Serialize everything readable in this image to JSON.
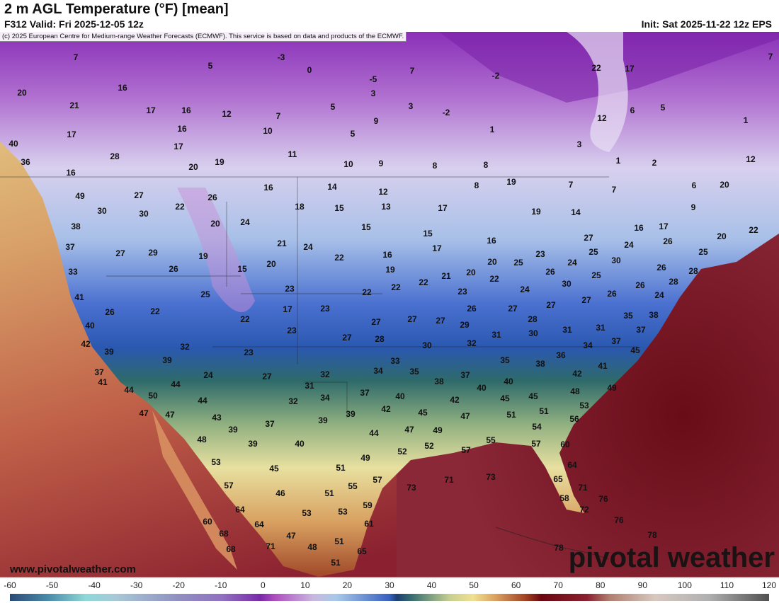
{
  "header": {
    "title": "2 m AGL Temperature (°F) [mean]",
    "valid": "F312 Valid: Fri 2025-12-05 12z",
    "init": "Init: Sat 2025-11-22 12z EPS",
    "copyright": "(c) 2025 European Centre for Medium-range Weather Forecasts (ECMWF). This service is based on data and products of the ECMWF."
  },
  "map": {
    "units": "°F",
    "temperature_labels": [
      "7",
      "5",
      "-3",
      "0",
      "7",
      "-2",
      "-5",
      "22",
      "17",
      "7",
      "20",
      "16",
      "21",
      "17",
      "16",
      "12",
      "7",
      "5",
      "3",
      "3",
      "-2",
      "9",
      "12",
      "6",
      "5",
      "1",
      "17",
      "16",
      "10",
      "5",
      "1",
      "40",
      "17",
      "11",
      "3",
      "28",
      "36",
      "20",
      "19",
      "10",
      "9",
      "8",
      "8",
      "1",
      "2",
      "12",
      "16",
      "19",
      "49",
      "27",
      "26",
      "16",
      "14",
      "12",
      "8",
      "7",
      "7",
      "6",
      "20",
      "30",
      "30",
      "22",
      "18",
      "15",
      "13",
      "17",
      "19",
      "14",
      "9",
      "38",
      "20",
      "24",
      "15",
      "15",
      "16",
      "17",
      "22",
      "37",
      "27",
      "29",
      "19",
      "21",
      "24",
      "22",
      "16",
      "17",
      "16",
      "23",
      "27",
      "25",
      "24",
      "26",
      "20",
      "25",
      "33",
      "26",
      "15",
      "20",
      "19",
      "21",
      "20",
      "20",
      "25",
      "24",
      "30",
      "26",
      "28",
      "41",
      "25",
      "23",
      "22",
      "22",
      "22",
      "23",
      "22",
      "24",
      "26",
      "30",
      "25",
      "26",
      "26",
      "28",
      "26",
      "22",
      "17",
      "23",
      "26",
      "27",
      "27",
      "27",
      "24",
      "38",
      "35",
      "40",
      "22",
      "23",
      "27",
      "27",
      "27",
      "29",
      "28",
      "37",
      "42",
      "27",
      "28",
      "31",
      "30",
      "31",
      "31",
      "32",
      "23",
      "30",
      "32",
      "37",
      "34",
      "45",
      "39",
      "39",
      "33",
      "35",
      "38",
      "36",
      "41",
      "37",
      "24",
      "27",
      "32",
      "34",
      "35",
      "37",
      "42",
      "41",
      "44",
      "31",
      "38",
      "40",
      "40",
      "48",
      "49",
      "44",
      "50",
      "44",
      "32",
      "34",
      "37",
      "40",
      "45",
      "45",
      "42",
      "53",
      "47",
      "47",
      "43",
      "39",
      "42",
      "45",
      "51",
      "51",
      "47",
      "56",
      "39",
      "37",
      "39",
      "47",
      "49",
      "54",
      "48",
      "39",
      "40",
      "44",
      "57",
      "55",
      "52",
      "60",
      "57",
      "52",
      "49",
      "53",
      "45",
      "51",
      "64",
      "57",
      "55",
      "57",
      "73",
      "71",
      "73",
      "65",
      "71",
      "46",
      "51",
      "58",
      "76",
      "64",
      "59",
      "53",
      "53",
      "72",
      "60",
      "64",
      "61",
      "76",
      "68",
      "47",
      "78",
      "51",
      "68",
      "71",
      "48",
      "65",
      "78",
      "51"
    ],
    "website": "www.pivotalweather.com",
    "brand": "pivotal weather"
  },
  "colorbar": {
    "ticks": [
      "-60",
      "-50",
      "-40",
      "-30",
      "-20",
      "-10",
      "0",
      "10",
      "20",
      "30",
      "40",
      "50",
      "60",
      "70",
      "80",
      "90",
      "100",
      "110",
      "120"
    ]
  }
}
